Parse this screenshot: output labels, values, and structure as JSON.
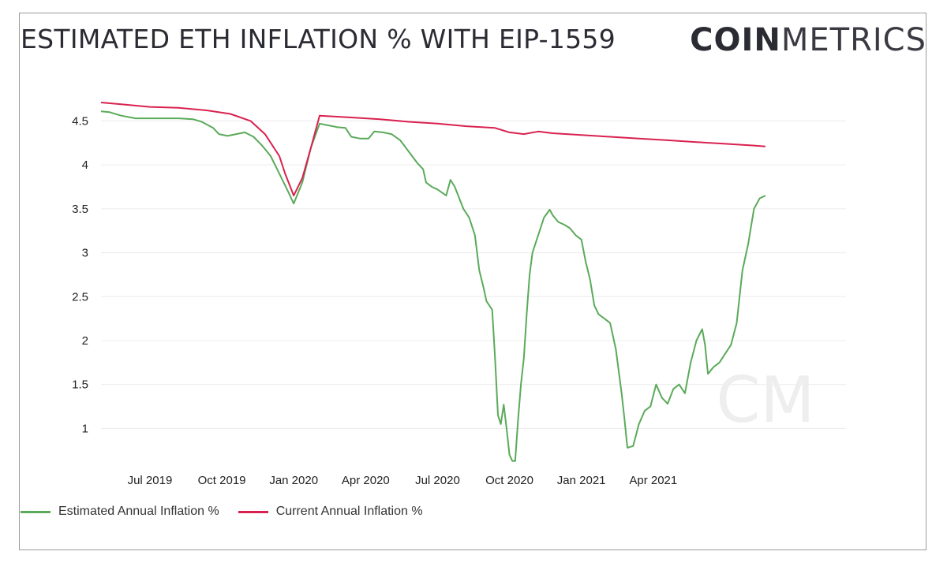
{
  "header": {
    "title": "ESTIMATED ETH INFLATION % WITH EIP-1559",
    "brand_bold": "COIN",
    "brand_light": "METRICS"
  },
  "watermark": "CM",
  "chart_data": {
    "type": "line",
    "title": "ESTIMATED ETH INFLATION % WITH EIP-1559",
    "xlabel": "",
    "ylabel": "",
    "x_range": [
      2019.33,
      2021.92
    ],
    "ylim": [
      0.6,
      4.8
    ],
    "grid": true,
    "legend": "bottom-left",
    "x_ticks": [
      {
        "label": "Jul 2019",
        "x": 2019.5
      },
      {
        "label": "Oct 2019",
        "x": 2019.75
      },
      {
        "label": "Jan 2020",
        "x": 2020.0
      },
      {
        "label": "Apr 2020",
        "x": 2020.25
      },
      {
        "label": "Jul 2020",
        "x": 2020.5
      },
      {
        "label": "Oct 2020",
        "x": 2020.75
      },
      {
        "label": "Jan 2021",
        "x": 2021.0
      },
      {
        "label": "Apr 2021",
        "x": 2021.25
      }
    ],
    "y_ticks": [
      {
        "label": "1",
        "y": 1
      },
      {
        "label": "1.5",
        "y": 1.5
      },
      {
        "label": "2",
        "y": 2
      },
      {
        "label": "2.5",
        "y": 2.5
      },
      {
        "label": "3",
        "y": 3
      },
      {
        "label": "3.5",
        "y": 3.5
      },
      {
        "label": "4",
        "y": 4
      },
      {
        "label": "4.5",
        "y": 4.5
      }
    ],
    "series": [
      {
        "name": "Estimated Annual Inflation %",
        "color": "#5aaa5a",
        "points": [
          [
            2019.33,
            4.61
          ],
          [
            2019.36,
            4.6
          ],
          [
            2019.4,
            4.56
          ],
          [
            2019.45,
            4.53
          ],
          [
            2019.5,
            4.53
          ],
          [
            2019.55,
            4.53
          ],
          [
            2019.6,
            4.53
          ],
          [
            2019.65,
            4.52
          ],
          [
            2019.68,
            4.49
          ],
          [
            2019.72,
            4.42
          ],
          [
            2019.74,
            4.35
          ],
          [
            2019.77,
            4.33
          ],
          [
            2019.8,
            4.35
          ],
          [
            2019.83,
            4.37
          ],
          [
            2019.86,
            4.32
          ],
          [
            2019.89,
            4.22
          ],
          [
            2019.92,
            4.1
          ],
          [
            2019.95,
            3.9
          ],
          [
            2019.98,
            3.7
          ],
          [
            2020.0,
            3.56
          ],
          [
            2020.03,
            3.8
          ],
          [
            2020.06,
            4.2
          ],
          [
            2020.09,
            4.47
          ],
          [
            2020.12,
            4.45
          ],
          [
            2020.15,
            4.43
          ],
          [
            2020.18,
            4.42
          ],
          [
            2020.2,
            4.32
          ],
          [
            2020.23,
            4.3
          ],
          [
            2020.26,
            4.3
          ],
          [
            2020.28,
            4.38
          ],
          [
            2020.31,
            4.37
          ],
          [
            2020.34,
            4.35
          ],
          [
            2020.37,
            4.28
          ],
          [
            2020.4,
            4.15
          ],
          [
            2020.43,
            4.02
          ],
          [
            2020.45,
            3.95
          ],
          [
            2020.46,
            3.8
          ],
          [
            2020.48,
            3.75
          ],
          [
            2020.5,
            3.72
          ],
          [
            2020.53,
            3.65
          ],
          [
            2020.545,
            3.83
          ],
          [
            2020.56,
            3.75
          ],
          [
            2020.59,
            3.5
          ],
          [
            2020.61,
            3.4
          ],
          [
            2020.63,
            3.2
          ],
          [
            2020.645,
            2.8
          ],
          [
            2020.66,
            2.6
          ],
          [
            2020.67,
            2.45
          ],
          [
            2020.69,
            2.35
          ],
          [
            2020.7,
            1.8
          ],
          [
            2020.71,
            1.15
          ],
          [
            2020.72,
            1.05
          ],
          [
            2020.73,
            1.27
          ],
          [
            2020.74,
            1.0
          ],
          [
            2020.75,
            0.7
          ],
          [
            2020.76,
            0.63
          ],
          [
            2020.77,
            0.63
          ],
          [
            2020.78,
            1.1
          ],
          [
            2020.79,
            1.5
          ],
          [
            2020.8,
            1.8
          ],
          [
            2020.81,
            2.3
          ],
          [
            2020.82,
            2.75
          ],
          [
            2020.83,
            3.0
          ],
          [
            2020.85,
            3.2
          ],
          [
            2020.87,
            3.4
          ],
          [
            2020.89,
            3.49
          ],
          [
            2020.9,
            3.43
          ],
          [
            2020.92,
            3.35
          ],
          [
            2020.94,
            3.32
          ],
          [
            2020.96,
            3.28
          ],
          [
            2020.98,
            3.2
          ],
          [
            2021.0,
            3.15
          ],
          [
            2021.015,
            2.9
          ],
          [
            2021.03,
            2.7
          ],
          [
            2021.045,
            2.4
          ],
          [
            2021.06,
            2.3
          ],
          [
            2021.08,
            2.25
          ],
          [
            2021.1,
            2.2
          ],
          [
            2021.12,
            1.9
          ],
          [
            2021.14,
            1.4
          ],
          [
            2021.15,
            1.1
          ],
          [
            2021.16,
            0.78
          ],
          [
            2021.18,
            0.8
          ],
          [
            2021.2,
            1.05
          ],
          [
            2021.22,
            1.2
          ],
          [
            2021.24,
            1.25
          ],
          [
            2021.26,
            1.5
          ],
          [
            2021.28,
            1.35
          ],
          [
            2021.3,
            1.28
          ],
          [
            2021.32,
            1.45
          ],
          [
            2021.34,
            1.5
          ],
          [
            2021.36,
            1.4
          ],
          [
            2021.38,
            1.75
          ],
          [
            2021.4,
            2.0
          ],
          [
            2021.42,
            2.13
          ],
          [
            2021.43,
            1.95
          ],
          [
            2021.44,
            1.62
          ],
          [
            2021.46,
            1.7
          ],
          [
            2021.48,
            1.75
          ],
          [
            2021.5,
            1.85
          ],
          [
            2021.52,
            1.95
          ],
          [
            2021.54,
            2.2
          ],
          [
            2021.56,
            2.8
          ],
          [
            2021.58,
            3.1
          ],
          [
            2021.6,
            3.5
          ],
          [
            2021.62,
            3.62
          ],
          [
            2021.64,
            3.65
          ]
        ]
      },
      {
        "name": "Current Annual Inflation %",
        "color": "#d9214f",
        "points": [
          [
            2019.33,
            4.71
          ],
          [
            2019.4,
            4.69
          ],
          [
            2019.5,
            4.66
          ],
          [
            2019.6,
            4.65
          ],
          [
            2019.7,
            4.62
          ],
          [
            2019.78,
            4.58
          ],
          [
            2019.85,
            4.5
          ],
          [
            2019.9,
            4.35
          ],
          [
            2019.95,
            4.1
          ],
          [
            2019.97,
            3.9
          ],
          [
            2020.0,
            3.65
          ],
          [
            2020.03,
            3.85
          ],
          [
            2020.06,
            4.2
          ],
          [
            2020.09,
            4.56
          ],
          [
            2020.2,
            4.54
          ],
          [
            2020.3,
            4.52
          ],
          [
            2020.4,
            4.49
          ],
          [
            2020.5,
            4.47
          ],
          [
            2020.6,
            4.44
          ],
          [
            2020.7,
            4.42
          ],
          [
            2020.75,
            4.37
          ],
          [
            2020.8,
            4.35
          ],
          [
            2020.85,
            4.38
          ],
          [
            2020.9,
            4.36
          ],
          [
            2021.0,
            4.34
          ],
          [
            2021.1,
            4.32
          ],
          [
            2021.2,
            4.3
          ],
          [
            2021.3,
            4.28
          ],
          [
            2021.4,
            4.26
          ],
          [
            2021.5,
            4.24
          ],
          [
            2021.6,
            4.22
          ],
          [
            2021.64,
            4.21
          ]
        ]
      }
    ]
  }
}
